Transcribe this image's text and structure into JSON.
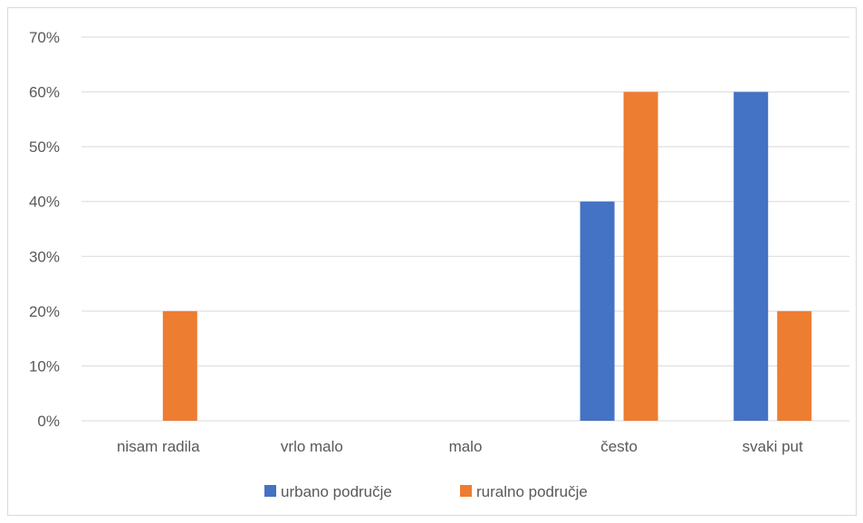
{
  "chart_data": {
    "type": "bar",
    "categories": [
      "nisam radila",
      "vrlo malo",
      "malo",
      "često",
      "svaki put"
    ],
    "series": [
      {
        "name": "urbano područje",
        "values": [
          0,
          0,
          0,
          40,
          60
        ],
        "color": "#4472C4"
      },
      {
        "name": "ruralno područje",
        "values": [
          20,
          0,
          0,
          60,
          20
        ],
        "color": "#ED7D31"
      }
    ],
    "ylim": [
      0,
      70
    ],
    "yticks": [
      "0%",
      "10%",
      "20%",
      "30%",
      "40%",
      "50%",
      "60%",
      "70%"
    ],
    "y_unit": "%",
    "grid": true,
    "legend_position": "bottom",
    "gridline_color": "#d9d9d9",
    "text_color": "#595959"
  }
}
